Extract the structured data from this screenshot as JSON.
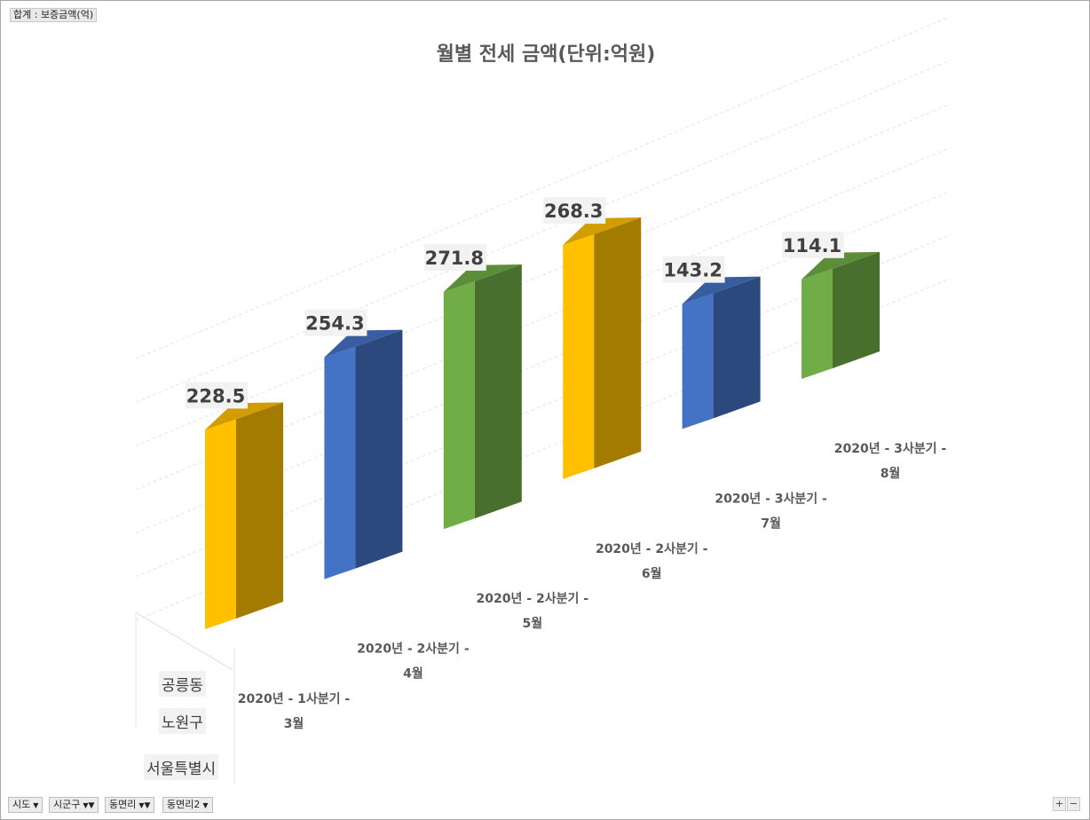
{
  "pivot": {
    "value_field": "합계 : 보증금액(억)",
    "axis_fields": [
      {
        "label": "시도",
        "filtered": false
      },
      {
        "label": "시군구",
        "filtered": true
      },
      {
        "label": "동면리",
        "filtered": true
      },
      {
        "label": "동면리2",
        "filtered": false
      }
    ],
    "outer_categories": [
      "공릉동",
      "노원구",
      "서울특별시"
    ],
    "zoom_in": "+",
    "zoom_out": "−"
  },
  "colors": {
    "gold": "#FFC000",
    "blue": "#4472C4",
    "green": "#70AD47"
  },
  "chart_data": {
    "type": "bar",
    "title": "월별 전세 금액(단위:억원)",
    "categories": [
      {
        "line1": "2020년 - 1사분기 -",
        "line2": "3월"
      },
      {
        "line1": "2020년 - 2사분기 -",
        "line2": "4월"
      },
      {
        "line1": "2020년 - 2사분기 -",
        "line2": "5월"
      },
      {
        "line1": "2020년 - 2사분기 -",
        "line2": "6월"
      },
      {
        "line1": "2020년 - 3사분기 -",
        "line2": "7월"
      },
      {
        "line1": "2020년 - 3사분기 -",
        "line2": "8월"
      }
    ],
    "values": [
      228.5,
      254.3,
      271.8,
      268.3,
      143.2,
      114.1
    ],
    "value_labels": [
      "228.5",
      "254.3",
      "271.8",
      "268.3",
      "143.2",
      "114.1"
    ],
    "bar_colors": [
      "gold",
      "blue",
      "green",
      "gold",
      "blue",
      "green"
    ],
    "ylim": [
      0,
      300
    ],
    "grid": true,
    "legend": "none",
    "style": "3d-column"
  }
}
